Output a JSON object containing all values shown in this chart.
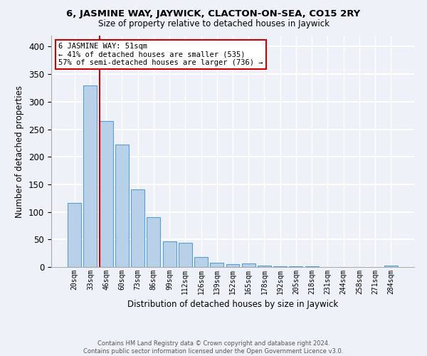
{
  "title": "6, JASMINE WAY, JAYWICK, CLACTON-ON-SEA, CO15 2RY",
  "subtitle": "Size of property relative to detached houses in Jaywick",
  "xlabel": "Distribution of detached houses by size in Jaywick",
  "ylabel": "Number of detached properties",
  "bar_color": "#b8d0e8",
  "bar_edge_color": "#5a9fd4",
  "categories": [
    "20sqm",
    "33sqm",
    "46sqm",
    "60sqm",
    "73sqm",
    "86sqm",
    "99sqm",
    "112sqm",
    "126sqm",
    "139sqm",
    "152sqm",
    "165sqm",
    "178sqm",
    "192sqm",
    "205sqm",
    "218sqm",
    "231sqm",
    "244sqm",
    "258sqm",
    "271sqm",
    "284sqm"
  ],
  "bar_heights": [
    116,
    330,
    265,
    222,
    141,
    90,
    46,
    44,
    18,
    8,
    5,
    6,
    2,
    1,
    1,
    1,
    0,
    0,
    0,
    0,
    3
  ],
  "ylim": [
    0,
    420
  ],
  "yticks": [
    0,
    50,
    100,
    150,
    200,
    250,
    300,
    350,
    400
  ],
  "annotation_text_line1": "6 JASMINE WAY: 51sqm",
  "annotation_text_line2": "← 41% of detached houses are smaller (535)",
  "annotation_text_line3": "57% of semi-detached houses are larger (736) →",
  "footer_line1": "Contains HM Land Registry data © Crown copyright and database right 2024.",
  "footer_line2": "Contains public sector information licensed under the Open Government Licence v3.0.",
  "bg_color": "#eef2f8",
  "grid_color": "#ffffff",
  "annotation_box_color": "#ffffff",
  "annotation_box_edge_color": "#cc0000",
  "vline_color": "#cc0000",
  "vline_bar_index": 2
}
